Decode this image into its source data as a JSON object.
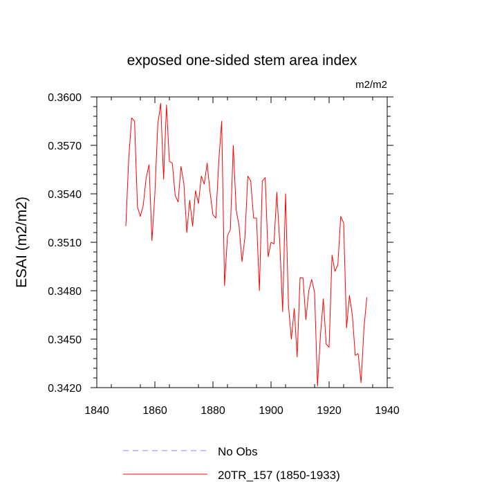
{
  "chart_data": {
    "type": "line",
    "title": "exposed one-sided stem area index",
    "units_label": "m2/m2",
    "xlabel": "",
    "ylabel": "ESAI  (m2/m2)",
    "xlim": [
      1840,
      1940
    ],
    "ylim": [
      0.342,
      0.36
    ],
    "x_ticks": [
      1840,
      1860,
      1880,
      1900,
      1920,
      1940
    ],
    "y_ticks": [
      0.342,
      0.345,
      0.348,
      0.351,
      0.354,
      0.357,
      0.36
    ],
    "x_tick_labels": [
      "1840",
      "1860",
      "1880",
      "1900",
      "1920",
      "1940"
    ],
    "y_tick_labels": [
      "0.3420",
      "0.3450",
      "0.3480",
      "0.3510",
      "0.3540",
      "0.3570",
      "0.3600"
    ],
    "legend": [
      {
        "label": "No Obs",
        "color": "#8080ff",
        "style": "dashed"
      },
      {
        "label": "20TR_157 (1850-1933)",
        "color": "#ff0000",
        "style": "solid"
      }
    ],
    "series": [
      {
        "name": "20TR_157 (1850-1933)",
        "color": "#ff0000",
        "x": [
          1850,
          1851,
          1852,
          1853,
          1854,
          1855,
          1856,
          1857,
          1858,
          1859,
          1860,
          1861,
          1862,
          1863,
          1864,
          1865,
          1866,
          1867,
          1868,
          1869,
          1870,
          1871,
          1872,
          1873,
          1874,
          1875,
          1876,
          1877,
          1878,
          1879,
          1880,
          1881,
          1882,
          1883,
          1884,
          1885,
          1886,
          1887,
          1888,
          1889,
          1890,
          1891,
          1892,
          1893,
          1894,
          1895,
          1896,
          1897,
          1898,
          1899,
          1900,
          1901,
          1902,
          1903,
          1904,
          1905,
          1906,
          1907,
          1908,
          1909,
          1910,
          1911,
          1912,
          1913,
          1914,
          1915,
          1916,
          1917,
          1918,
          1919,
          1920,
          1921,
          1922,
          1923,
          1924,
          1925,
          1926,
          1927,
          1928,
          1929,
          1930,
          1931,
          1932,
          1933
        ],
        "values": [
          0.352,
          0.3562,
          0.3587,
          0.3585,
          0.3532,
          0.3526,
          0.3533,
          0.355,
          0.3558,
          0.3511,
          0.354,
          0.3583,
          0.3596,
          0.3549,
          0.3595,
          0.356,
          0.3559,
          0.3539,
          0.3535,
          0.3557,
          0.3546,
          0.3516,
          0.3536,
          0.352,
          0.3542,
          0.3534,
          0.3551,
          0.3546,
          0.3559,
          0.3541,
          0.3527,
          0.3525,
          0.356,
          0.3585,
          0.3483,
          0.3514,
          0.3518,
          0.357,
          0.353,
          0.352,
          0.3498,
          0.3513,
          0.3551,
          0.3548,
          0.3525,
          0.3525,
          0.348,
          0.3548,
          0.355,
          0.3501,
          0.351,
          0.3509,
          0.3541,
          0.351,
          0.3467,
          0.354,
          0.3471,
          0.345,
          0.3469,
          0.3439,
          0.3488,
          0.3488,
          0.3462,
          0.348,
          0.3487,
          0.3479,
          0.3421,
          0.3452,
          0.3475,
          0.3447,
          0.3445,
          0.3502,
          0.3492,
          0.3496,
          0.3526,
          0.3522,
          0.3457,
          0.3477,
          0.3465,
          0.344,
          0.3441,
          0.3423,
          0.3457,
          0.3476
        ]
      }
    ]
  }
}
